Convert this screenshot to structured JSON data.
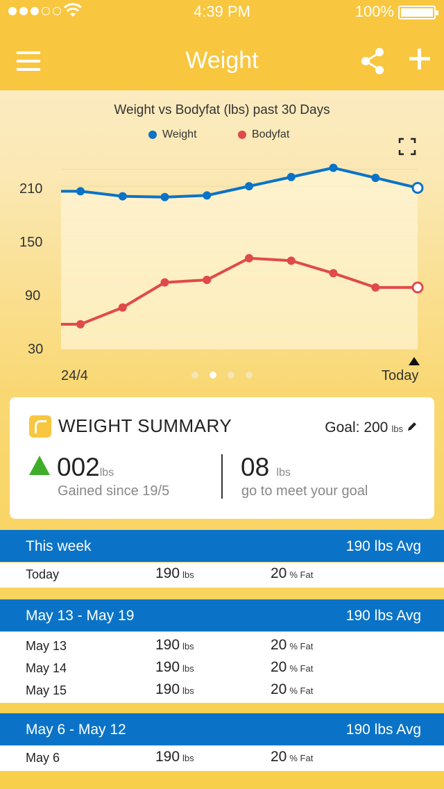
{
  "status_bar": {
    "time": "4:39 PM",
    "battery": "100%"
  },
  "nav": {
    "title": "Weight"
  },
  "chart_data": {
    "type": "line",
    "title": "Weight vs Bodyfat (lbs) past 30 Days",
    "yticks": [
      210,
      150,
      90,
      30
    ],
    "ylim": [
      15,
      240
    ],
    "x_start_label": "24/4",
    "x_end_label": "Today",
    "legend_position": "top",
    "series": [
      {
        "name": "Weight",
        "color": "#0a73c7",
        "x": [
          0,
          1,
          2,
          3,
          4,
          5,
          6,
          7,
          8
        ],
        "values": [
          204,
          198,
          197,
          199,
          210,
          221,
          232,
          220,
          208
        ]
      },
      {
        "name": "Bodyfat",
        "color": "#e04a4a",
        "x": [
          0,
          1,
          2,
          3,
          4,
          5,
          6,
          7,
          8
        ],
        "values": [
          45,
          65,
          95,
          98,
          124,
          121,
          106,
          89,
          89
        ]
      }
    ]
  },
  "summary": {
    "title": "WEIGHT SUMMARY",
    "goal_label": "Goal: 200",
    "goal_unit": "lbs",
    "gained_value": "002",
    "gained_unit": "lbs",
    "gained_label": "Gained since 19/5",
    "remaining_value": "08",
    "remaining_unit": "lbs",
    "remaining_label": "go to meet your goal"
  },
  "weeks": [
    {
      "label": "This week",
      "avg": "190 lbs Avg",
      "rows": [
        {
          "date": "Today",
          "weight": "190",
          "weight_unit": "lbs",
          "fat": "20",
          "fat_unit": "% Fat"
        }
      ]
    },
    {
      "label": "May 13 - May 19",
      "avg": "190 lbs Avg",
      "rows": [
        {
          "date": "May 13",
          "weight": "190",
          "weight_unit": "lbs",
          "fat": "20",
          "fat_unit": "% Fat"
        },
        {
          "date": "May 14",
          "weight": "190",
          "weight_unit": "lbs",
          "fat": "20",
          "fat_unit": "% Fat"
        },
        {
          "date": "May 15",
          "weight": "190",
          "weight_unit": "lbs",
          "fat": "20",
          "fat_unit": "% Fat"
        }
      ]
    },
    {
      "label": "May 6 - May 12",
      "avg": "190 lbs Avg",
      "rows": [
        {
          "date": "May 6",
          "weight": "190",
          "weight_unit": "lbs",
          "fat": "20",
          "fat_unit": "% Fat"
        }
      ]
    }
  ]
}
